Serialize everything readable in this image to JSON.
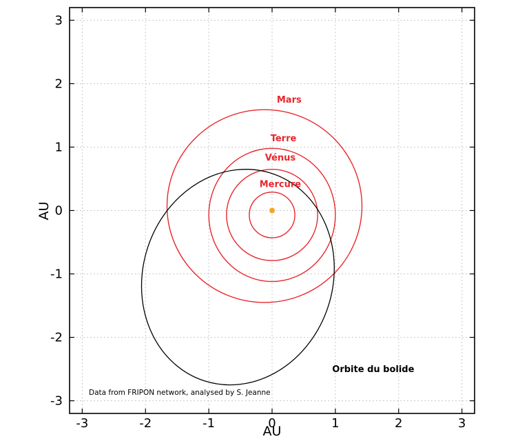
{
  "chart_data": {
    "type": "scatter",
    "xlabel": "AU",
    "ylabel": "AU",
    "xlim": [
      -3.2,
      3.2
    ],
    "ylim": [
      -3.2,
      3.2
    ],
    "x_ticks": [
      -3,
      -2,
      -1,
      0,
      1,
      2,
      3
    ],
    "y_ticks": [
      -3,
      -2,
      -1,
      0,
      1,
      2,
      3
    ],
    "x_tick_labels": [
      "-3",
      "-2",
      "-1",
      "0",
      "1",
      "2",
      "3"
    ],
    "y_tick_labels": [
      "-3",
      "-2",
      "-1",
      "0",
      "1",
      "2",
      "3"
    ],
    "grid": true,
    "sun": {
      "x": 0,
      "y": 0,
      "color": "#f5a623"
    },
    "orbits": [
      {
        "name": "Mercure",
        "cx": 0.0,
        "cy": -0.07,
        "rx": 0.36,
        "ry": 0.36,
        "color": "#e8262c",
        "label_x": 0.13,
        "label_y": 0.37
      },
      {
        "name": "Vénus",
        "cx": 0.0,
        "cy": -0.07,
        "rx": 0.72,
        "ry": 0.72,
        "color": "#e8262c",
        "label_x": 0.13,
        "label_y": 0.79
      },
      {
        "name": "Terre",
        "cx": 0.0,
        "cy": -0.07,
        "rx": 1.0,
        "ry": 1.05,
        "color": "#e8262c",
        "label_x": 0.18,
        "label_y": 1.09
      },
      {
        "name": "Mars",
        "cx": -0.12,
        "cy": 0.07,
        "rx": 1.54,
        "ry": 1.52,
        "color": "#e8262c",
        "label_x": 0.27,
        "label_y": 1.7
      }
    ],
    "bolide": {
      "name": "Orbite du bolide",
      "cx": -0.54,
      "cy": -1.05,
      "rx": 1.5,
      "ry": 1.72,
      "rotation_deg": 18,
      "color": "#000000",
      "label_x": 0.95,
      "label_y": -2.55
    },
    "annotation": "Data from FRIPON network, analysed by S. Jeanne"
  }
}
